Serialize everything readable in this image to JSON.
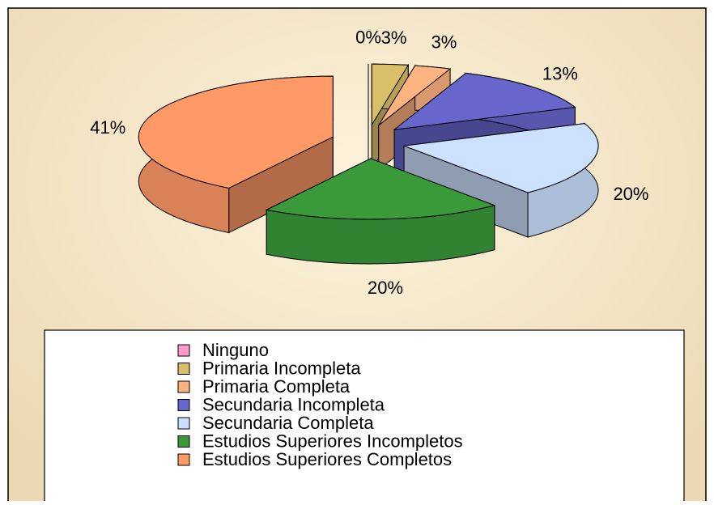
{
  "chart_data": {
    "type": "pie",
    "categories": [
      "Ninguno",
      "Primaria Incompleta",
      "Primaria Completa",
      "Secundaria Incompleta",
      "Secundaria Completa",
      "Estudios Superiores Incompletos",
      "Estudios Superiores Completos"
    ],
    "values": [
      0,
      3,
      3,
      13,
      20,
      20,
      41
    ],
    "value_labels": [
      "0%",
      "3%",
      "3%",
      "13%",
      "20%",
      "20%",
      "41%"
    ],
    "colors": [
      "#ff99cc",
      "#d9bf6a",
      "#ffb380",
      "#6666cc",
      "#cce0ff",
      "#3a9a3a",
      "#ff9966"
    ],
    "legend": "bottom"
  }
}
